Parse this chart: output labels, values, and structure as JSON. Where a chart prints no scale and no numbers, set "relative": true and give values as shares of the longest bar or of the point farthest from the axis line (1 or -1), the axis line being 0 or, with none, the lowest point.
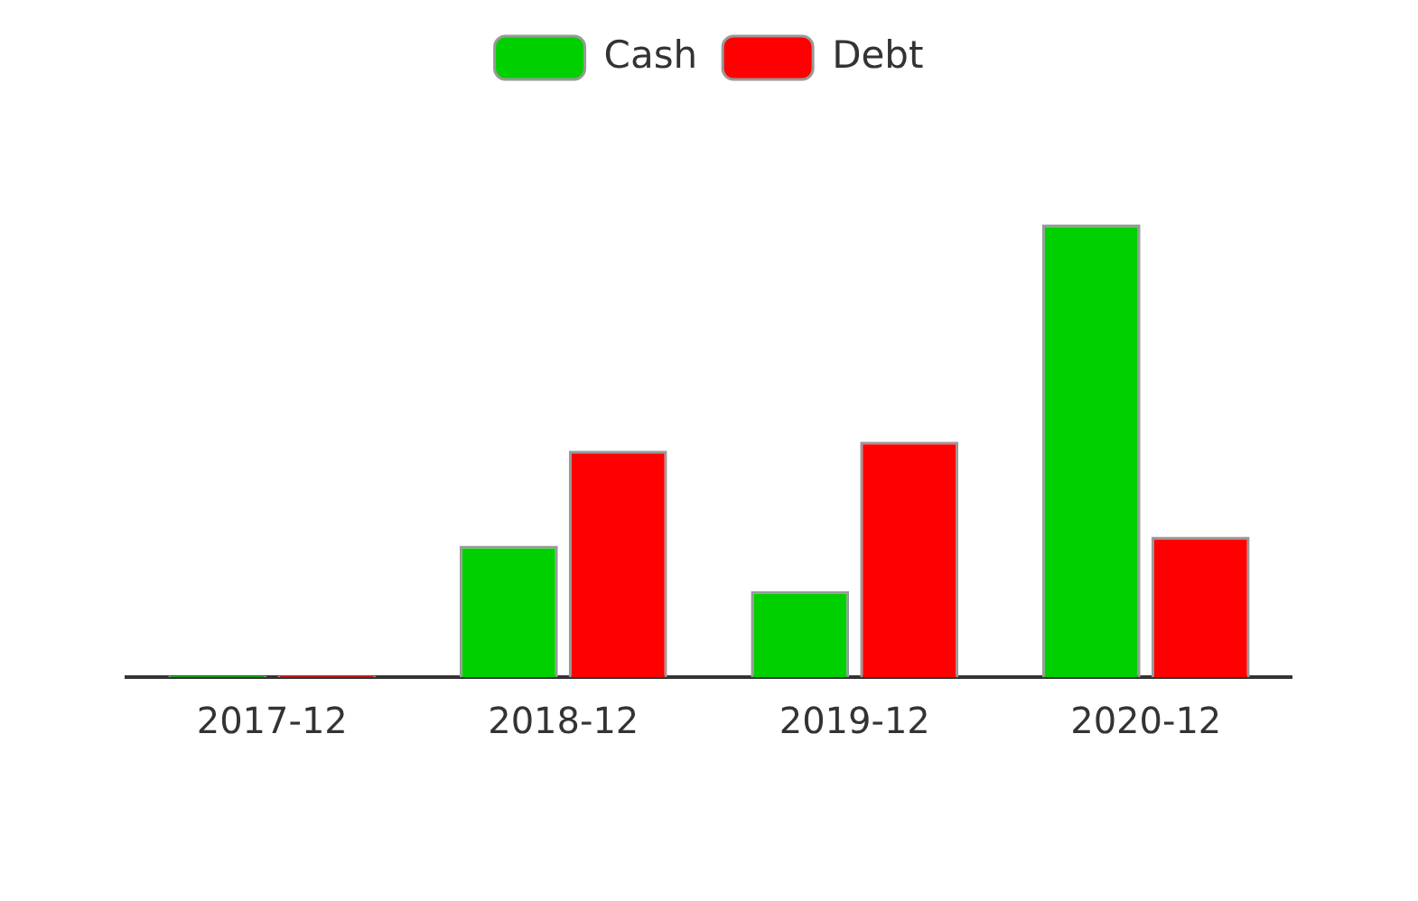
{
  "chart_data": {
    "type": "bar",
    "relative": true,
    "categories": [
      "2017-12",
      "2018-12",
      "2019-12",
      "2020-12"
    ],
    "series": [
      {
        "name": "Cash",
        "color": "#00d000",
        "values": [
          0.003,
          0.29,
          0.19,
          1
        ]
      },
      {
        "name": "Debt",
        "color": "#ff0000",
        "values": [
          0.003,
          0.5,
          0.52,
          0.31
        ]
      }
    ],
    "legend": "top",
    "grid": false
  }
}
